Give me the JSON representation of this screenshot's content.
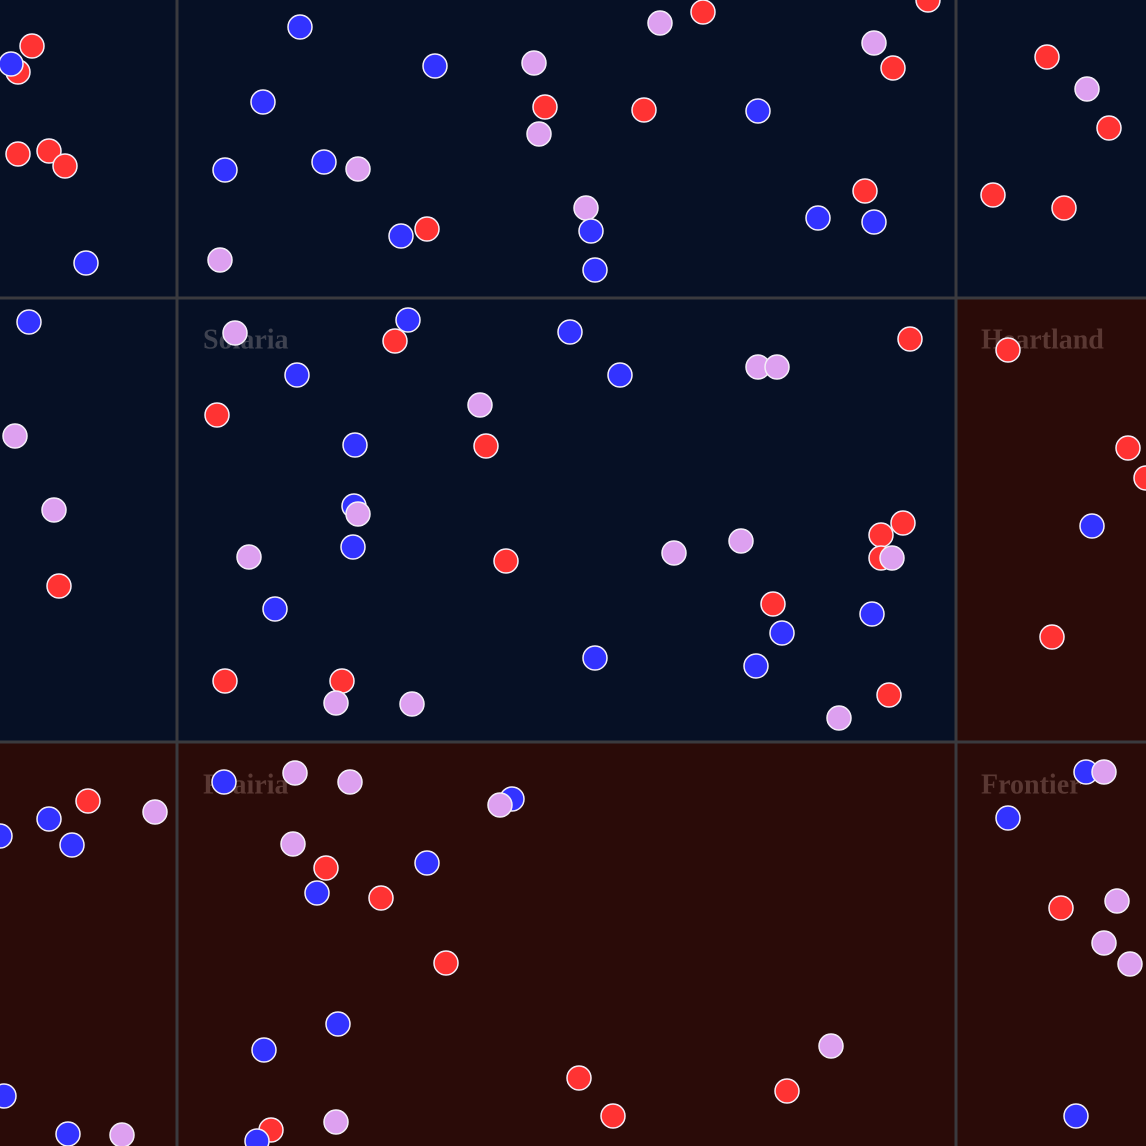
{
  "regions": [
    "Solaria",
    "Heartland",
    "Prairia",
    "Frontier"
  ]
}
